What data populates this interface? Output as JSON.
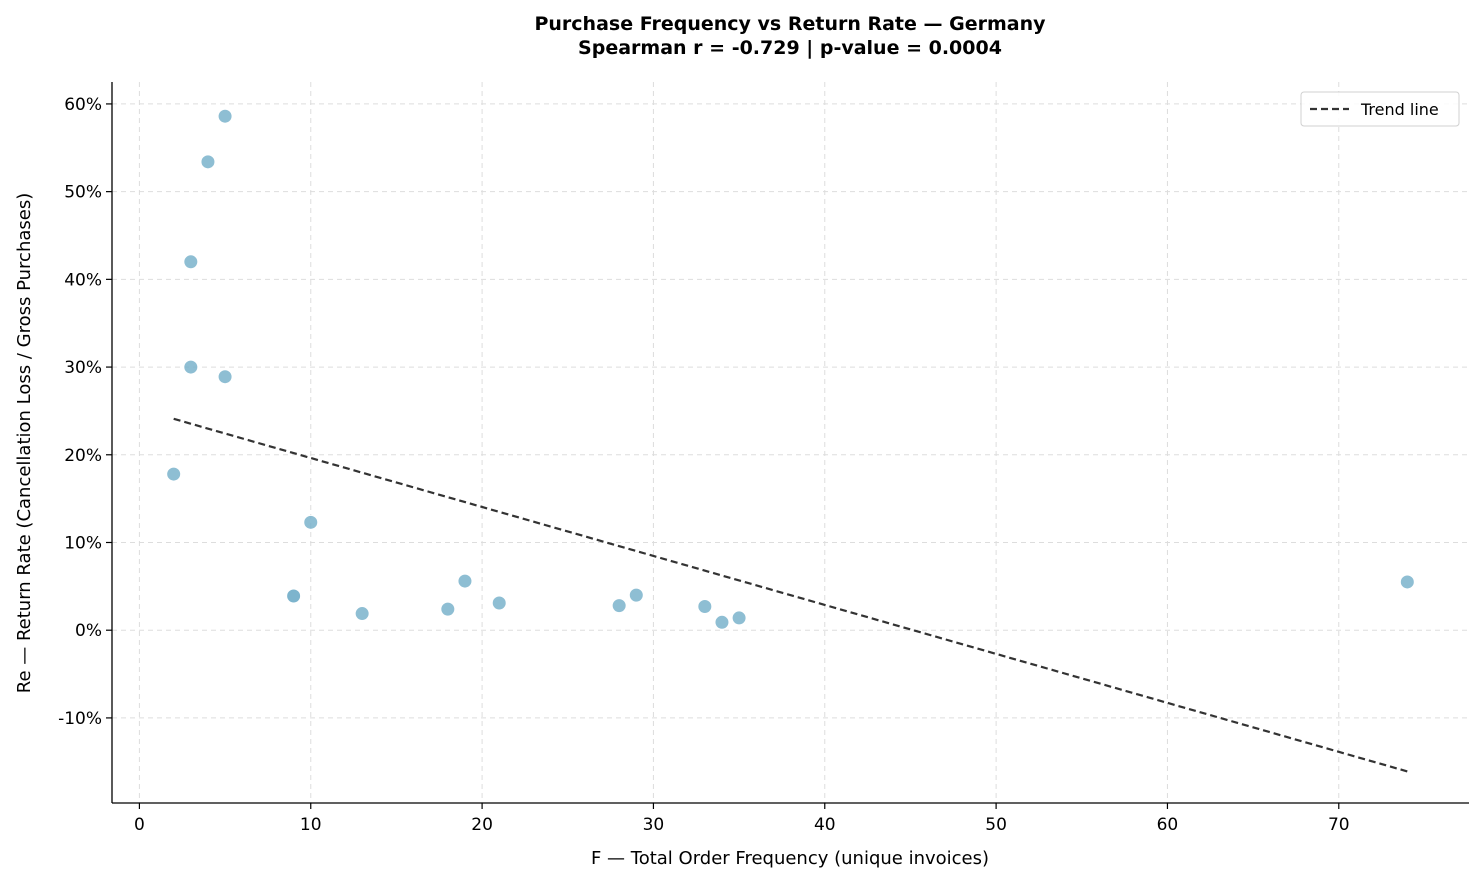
{
  "chart_data": {
    "type": "scatter",
    "title": "Purchase Frequency vs Return Rate — Germany",
    "subtitle": "Spearman r = -0.729 | p-value = 0.0004",
    "xlabel": "F — Total Order Frequency (unique invoices)",
    "ylabel": "Re — Return Rate (Cancellation Loss / Gross Purchases)",
    "xlim": [
      -1.6,
      77.6
    ],
    "ylim": [
      -0.197,
      0.625
    ],
    "x_ticks": [
      0,
      10,
      20,
      30,
      40,
      50,
      60,
      70
    ],
    "x_tick_labels": [
      "0",
      "10",
      "20",
      "30",
      "40",
      "50",
      "60",
      "70"
    ],
    "y_ticks": [
      -0.1,
      0,
      0.1,
      0.2,
      0.3,
      0.4,
      0.5,
      0.6
    ],
    "y_tick_labels": [
      "-10%",
      "0%",
      "10%",
      "20%",
      "30%",
      "40%",
      "50%",
      "60%"
    ],
    "grid": true,
    "legend_position": "top-right",
    "point_color": "#7ab3cb",
    "trend_color": "#333333",
    "points": [
      {
        "x": 5,
        "y": 0.586
      },
      {
        "x": 4,
        "y": 0.534
      },
      {
        "x": 3,
        "y": 0.42
      },
      {
        "x": 3,
        "y": 0.3
      },
      {
        "x": 5,
        "y": 0.289
      },
      {
        "x": 2,
        "y": 0.178
      },
      {
        "x": 10,
        "y": 0.123
      },
      {
        "x": 9,
        "y": 0.039
      },
      {
        "x": 9,
        "y": 0.039
      },
      {
        "x": 13,
        "y": 0.019
      },
      {
        "x": 18,
        "y": 0.024
      },
      {
        "x": 19,
        "y": 0.056
      },
      {
        "x": 21,
        "y": 0.031
      },
      {
        "x": 28,
        "y": 0.028
      },
      {
        "x": 29,
        "y": 0.04
      },
      {
        "x": 33,
        "y": 0.027
      },
      {
        "x": 34,
        "y": 0.009
      },
      {
        "x": 35,
        "y": 0.014
      },
      {
        "x": 74,
        "y": 0.055
      }
    ],
    "trend_line": {
      "name": "Trend line",
      "x": [
        2,
        74
      ],
      "y": [
        0.241,
        -0.161
      ]
    }
  }
}
